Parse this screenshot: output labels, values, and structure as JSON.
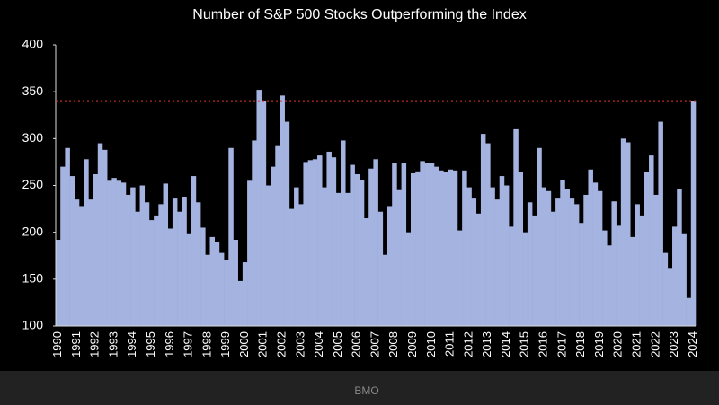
{
  "chart_data": {
    "type": "bar",
    "title": "Number of S&P 500 Stocks Outperforming the Index",
    "source": "BMO",
    "categories": [
      "1990",
      null,
      null,
      null,
      "1991",
      null,
      null,
      null,
      "1992",
      null,
      null,
      null,
      "1993",
      null,
      null,
      null,
      "1994",
      null,
      null,
      null,
      "1995",
      null,
      null,
      null,
      "1996",
      null,
      null,
      null,
      "1997",
      null,
      null,
      null,
      "1998",
      null,
      null,
      null,
      "1999",
      null,
      null,
      null,
      "2000",
      null,
      null,
      null,
      "2001",
      null,
      null,
      null,
      "2002",
      null,
      null,
      null,
      "2003",
      null,
      null,
      null,
      "2004",
      null,
      null,
      null,
      "2005",
      null,
      null,
      null,
      "2006",
      null,
      null,
      null,
      "2007",
      null,
      null,
      null,
      "2008",
      null,
      null,
      null,
      "2009",
      null,
      null,
      null,
      "2010",
      null,
      null,
      null,
      "2011",
      null,
      null,
      null,
      "2012",
      null,
      null,
      null,
      "2013",
      null,
      null,
      null,
      "2014",
      null,
      null,
      null,
      "2015",
      null,
      null,
      null,
      "2016",
      null,
      null,
      null,
      "2017",
      null,
      null,
      null,
      "2018",
      null,
      null,
      null,
      "2019",
      null,
      null,
      null,
      "2020",
      null,
      null,
      null,
      "2021",
      null,
      null,
      null,
      "2022",
      null,
      null,
      null,
      "2023",
      null,
      null,
      null,
      "2024"
    ],
    "values": [
      192,
      270,
      290,
      260,
      235,
      228,
      278,
      235,
      262,
      295,
      288,
      255,
      258,
      255,
      253,
      240,
      248,
      222,
      250,
      232,
      213,
      218,
      230,
      252,
      204,
      236,
      222,
      238,
      198,
      260,
      232,
      205,
      176,
      195,
      190,
      178,
      170,
      290,
      192,
      148,
      168,
      255,
      298,
      352,
      340,
      250,
      270,
      292,
      346,
      318,
      225,
      248,
      230,
      275,
      277,
      278,
      282,
      248,
      286,
      280,
      242,
      298,
      242,
      272,
      262,
      256,
      215,
      268,
      278,
      222,
      176,
      228,
      274,
      245,
      274,
      200,
      263,
      265,
      276,
      274,
      274,
      270,
      266,
      264,
      267,
      266,
      202,
      266,
      248,
      236,
      220,
      305,
      295,
      248,
      235,
      260,
      250,
      206,
      310,
      264,
      200,
      232,
      218,
      290,
      248,
      244,
      222,
      236,
      256,
      246,
      236,
      230,
      210,
      240,
      267,
      253,
      244,
      202,
      186,
      233,
      207,
      300,
      296,
      195,
      230,
      218,
      264,
      282,
      240,
      318,
      178,
      162,
      206,
      246,
      198,
      130,
      340
    ],
    "color": "#a4b3e0",
    "reference_line": 340,
    "reference_color": "#e0342c",
    "ylim": [
      100,
      400
    ],
    "yticks": [
      100,
      150,
      200,
      250,
      300,
      350,
      400
    ]
  }
}
